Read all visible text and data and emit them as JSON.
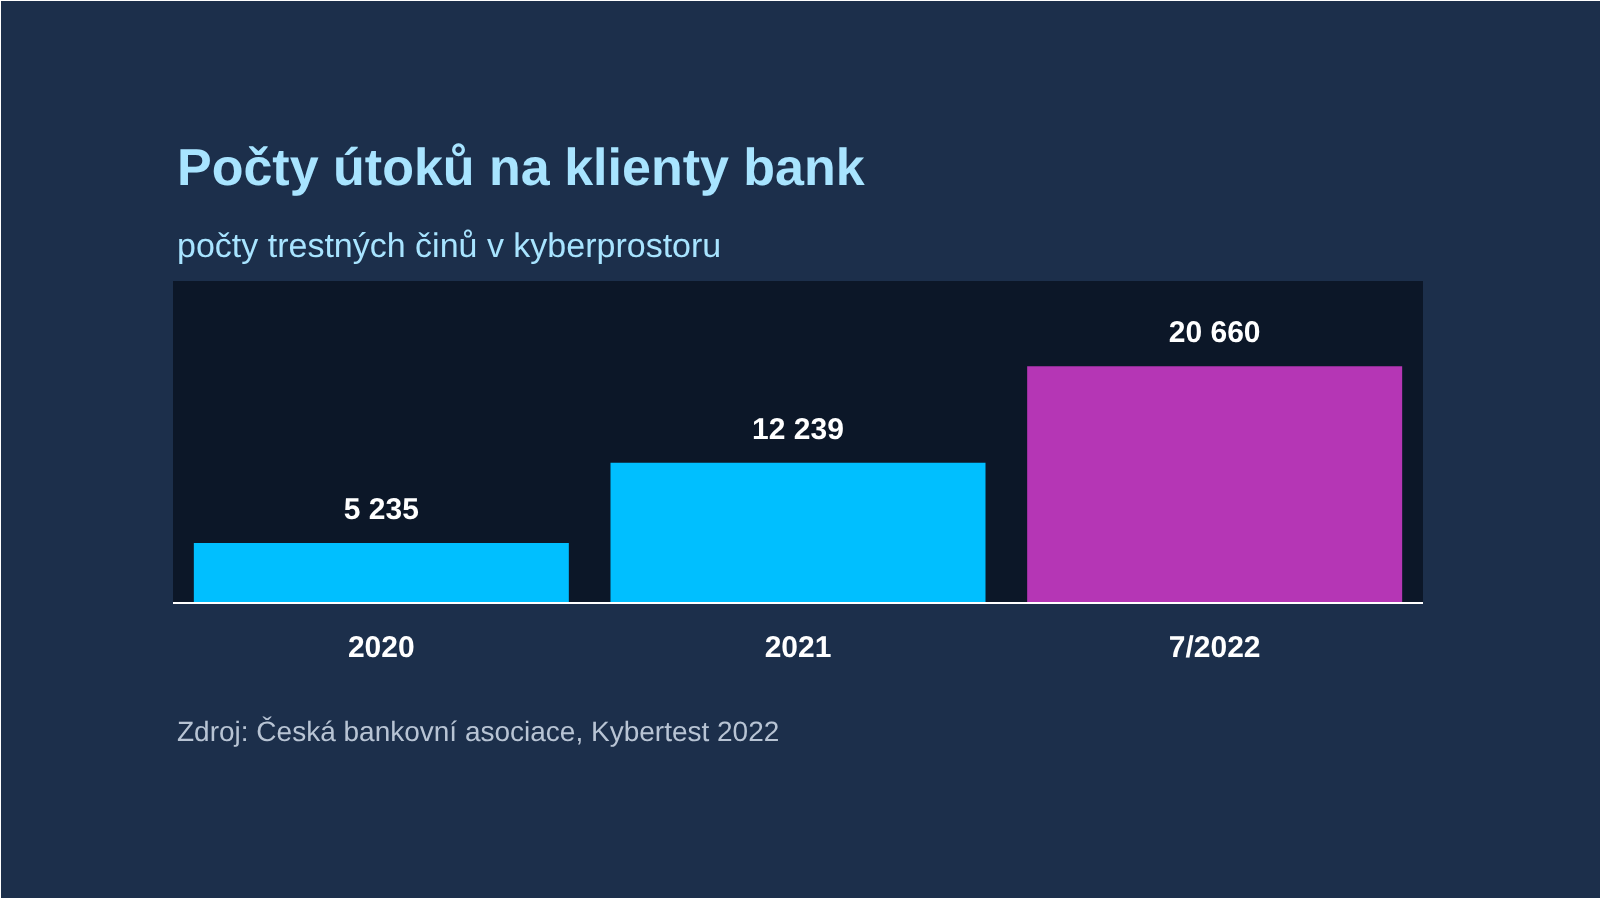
{
  "chart_data": {
    "type": "bar",
    "title": "Počty útoků na klienty bank",
    "subtitle": "počty trestných činů v kyberprostoru",
    "categories": [
      "2020",
      "2021",
      "7/2022"
    ],
    "values": [
      5235,
      12239,
      20660
    ],
    "colors": [
      "#00bfff",
      "#00bfff",
      "#b536b5"
    ],
    "value_labels": [
      "5 235",
      "12 239",
      "20 660"
    ],
    "grid": false,
    "tick_labels": "x",
    "annotations": [
      "Zdroj: Česká bankovní asociace, Kybertest 2022"
    ]
  }
}
